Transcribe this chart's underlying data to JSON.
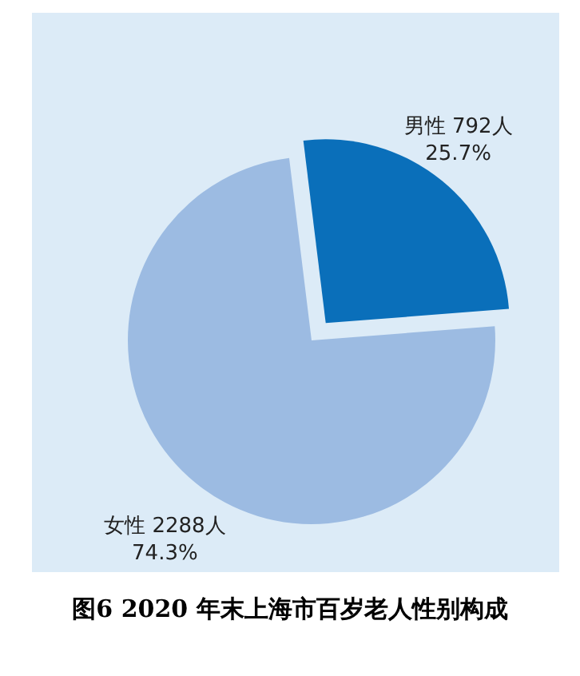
{
  "chart_data": {
    "type": "pie",
    "title": "图6 2020 年末上海市百岁老人性别构成",
    "categories": [
      "男性",
      "女性"
    ],
    "values": [
      792,
      2288
    ],
    "colors": [
      "#0a6fba",
      "#9cbbe2"
    ],
    "value_labels": [
      "792人\n25.7%",
      "2288人\n74.3%"
    ]
  }
}
